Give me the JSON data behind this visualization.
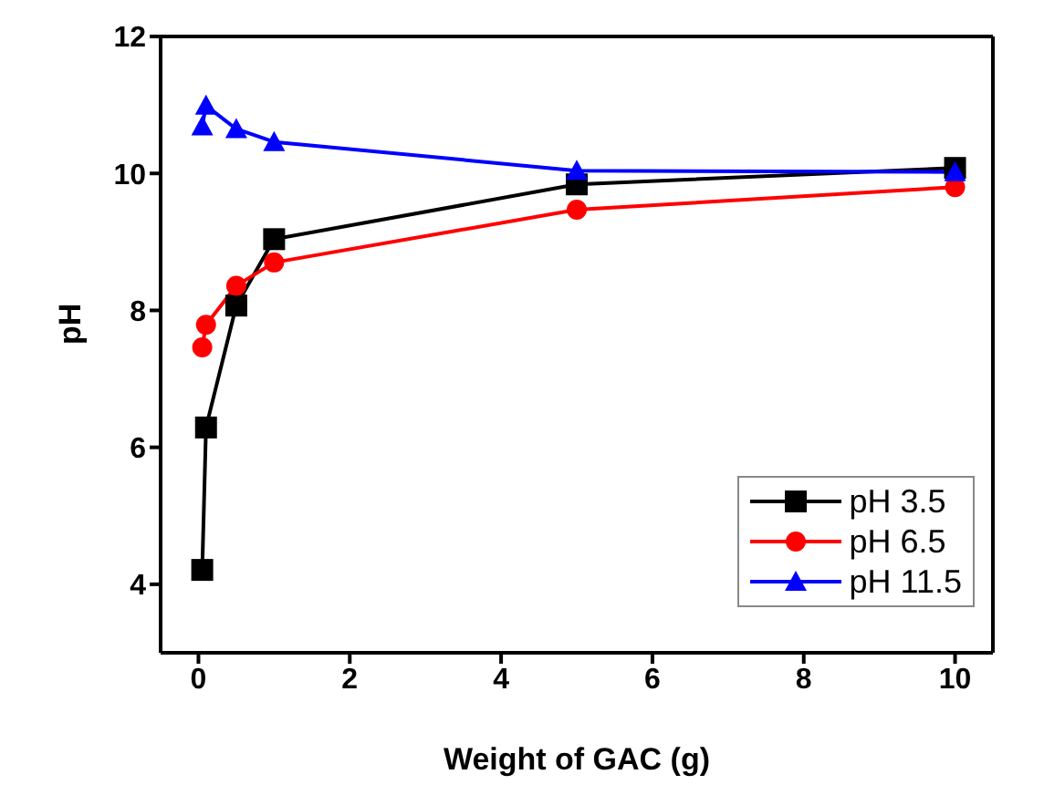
{
  "chart_data": {
    "type": "line",
    "xlabel": "Weight of GAC (g)",
    "ylabel": "pH",
    "x": [
      0.05,
      0.1,
      0.5,
      1,
      5,
      10
    ],
    "series": [
      {
        "name": "pH 3.5",
        "color": "#000000",
        "marker": "square",
        "values": [
          4.21,
          6.29,
          8.07,
          9.04,
          9.84,
          10.08
        ]
      },
      {
        "name": "pH 6.5",
        "color": "#ff0000",
        "marker": "circle",
        "values": [
          7.46,
          7.79,
          8.36,
          8.7,
          9.47,
          9.8
        ]
      },
      {
        "name": "pH 11.5",
        "color": "#0000ff",
        "marker": "triangle",
        "values": [
          10.69,
          10.99,
          10.65,
          10.46,
          10.04,
          10.02
        ]
      }
    ],
    "xlim": [
      -0.5,
      10.5
    ],
    "xticks": [
      0,
      2,
      4,
      6,
      8,
      10
    ],
    "ylim": [
      3,
      12
    ],
    "yticks": [
      4,
      6,
      8,
      10,
      12
    ],
    "grid": false,
    "legend": "bottom right"
  }
}
